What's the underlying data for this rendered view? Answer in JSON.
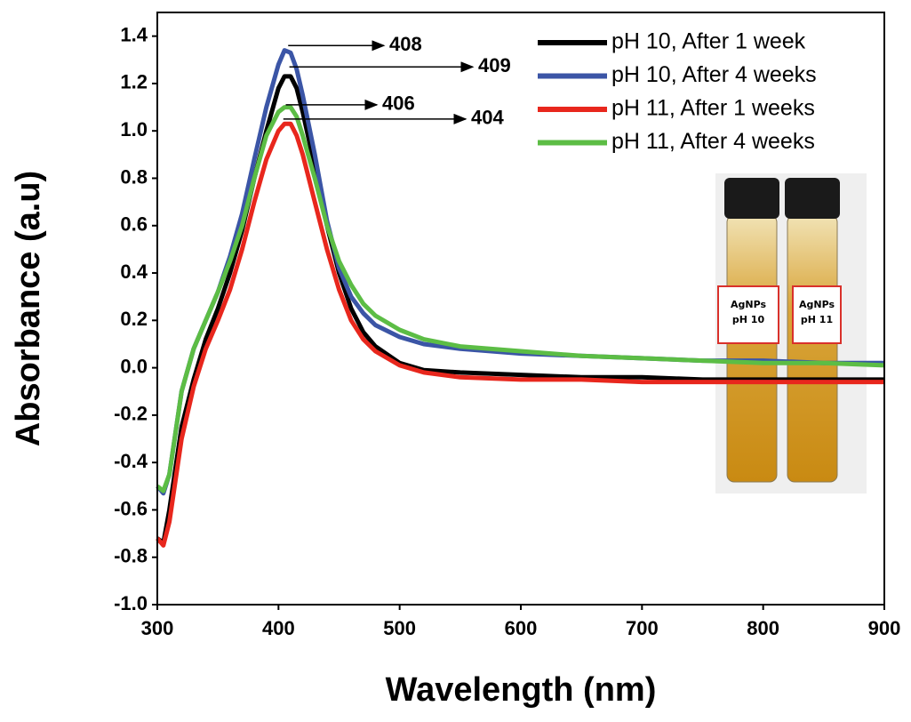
{
  "chart_data": {
    "type": "line",
    "x_label": "Wavelength (nm)",
    "y_label": "Absorbance (a.u)",
    "x": [
      300,
      305,
      310,
      320,
      330,
      340,
      350,
      360,
      370,
      380,
      390,
      400,
      405,
      410,
      415,
      420,
      430,
      440,
      450,
      460,
      470,
      480,
      500,
      520,
      550,
      600,
      650,
      700,
      750,
      800,
      850,
      900
    ],
    "series": [
      {
        "name": "pH 10, After 1 week",
        "color": "#000000",
        "values": [
          -0.72,
          -0.74,
          -0.6,
          -0.25,
          -0.05,
          0.12,
          0.25,
          0.4,
          0.58,
          0.8,
          1.0,
          1.18,
          1.23,
          1.23,
          1.18,
          1.08,
          0.85,
          0.6,
          0.4,
          0.25,
          0.15,
          0.09,
          0.02,
          -0.01,
          -0.02,
          -0.03,
          -0.04,
          -0.04,
          -0.05,
          -0.05,
          -0.05,
          -0.05
        ]
      },
      {
        "name": "pH 10, After 4 weeks",
        "color": "#3b55a6",
        "values": [
          -0.5,
          -0.53,
          -0.45,
          -0.1,
          0.08,
          0.2,
          0.32,
          0.47,
          0.65,
          0.88,
          1.1,
          1.28,
          1.34,
          1.33,
          1.26,
          1.15,
          0.9,
          0.62,
          0.42,
          0.3,
          0.23,
          0.18,
          0.13,
          0.1,
          0.08,
          0.06,
          0.05,
          0.04,
          0.03,
          0.03,
          0.02,
          0.02
        ]
      },
      {
        "name": "pH 11, After 1 weeks",
        "color": "#e8271d",
        "values": [
          -0.72,
          -0.75,
          -0.65,
          -0.3,
          -0.08,
          0.08,
          0.2,
          0.33,
          0.5,
          0.7,
          0.88,
          1.0,
          1.03,
          1.03,
          0.98,
          0.9,
          0.7,
          0.5,
          0.33,
          0.2,
          0.12,
          0.07,
          0.01,
          -0.02,
          -0.04,
          -0.05,
          -0.05,
          -0.06,
          -0.06,
          -0.06,
          -0.06,
          -0.06
        ]
      },
      {
        "name": "pH 11, After 4 weeks",
        "color": "#5cbd45",
        "values": [
          -0.5,
          -0.52,
          -0.45,
          -0.1,
          0.08,
          0.2,
          0.32,
          0.45,
          0.6,
          0.8,
          0.98,
          1.08,
          1.1,
          1.1,
          1.06,
          0.98,
          0.8,
          0.6,
          0.45,
          0.35,
          0.27,
          0.22,
          0.16,
          0.12,
          0.09,
          0.07,
          0.05,
          0.04,
          0.03,
          0.02,
          0.02,
          0.01
        ]
      }
    ],
    "annotations": [
      {
        "text": "408",
        "x": 408,
        "y": 1.36
      },
      {
        "text": "409",
        "x": 409,
        "y": 1.27
      },
      {
        "text": "406",
        "x": 406,
        "y": 1.11
      },
      {
        "text": "404",
        "x": 404,
        "y": 1.05
      }
    ],
    "inset_labels": [
      [
        "AgNPs",
        "pH 10"
      ],
      [
        "AgNPs",
        "pH 11"
      ]
    ],
    "xlim": [
      300,
      900
    ],
    "xticks": [
      300,
      400,
      500,
      600,
      700,
      800,
      900
    ],
    "ylim": [
      -1.0,
      1.5
    ],
    "yticks": [
      {
        "value": -1.0,
        "label": "-1.0"
      },
      -0.8,
      -0.6,
      -0.4,
      -0.2,
      {
        "value": 0.0,
        "label": "0.0"
      },
      0.2,
      0.4,
      0.6,
      0.8,
      {
        "value": 1.0,
        "label": "1.0"
      },
      1.2,
      1.4
    ],
    "legend": "upper right",
    "line_width": 5
  }
}
